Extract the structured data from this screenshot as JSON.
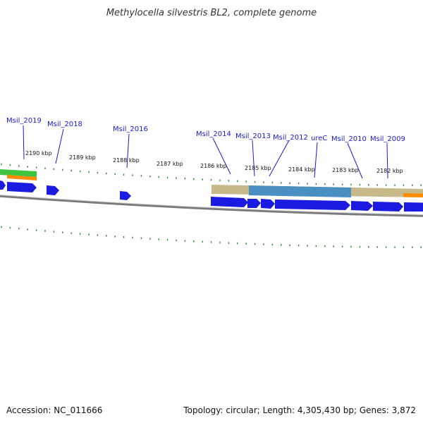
{
  "title": "Methylocella silvestris BL2, complete genome",
  "footer": {
    "accession": "Accession: NC_011666",
    "summary": "Topology: circular; Length: 4,305,430 bp; Genes: 3,872"
  },
  "scale_labels": [
    "2190 kbp",
    "2189 kbp",
    "2188 kbp",
    "2187 kbp",
    "2186 kbp",
    "2185 kbp",
    "2184 kbp",
    "2183 kbp",
    "2182 kbp"
  ],
  "gene_labels": [
    "Msil_2019",
    "Msil_2018",
    "Msil_2016",
    "Msil_2014",
    "Msil_2013",
    "Msil_2012",
    "ureC",
    "Msil_2010",
    "Msil_2009"
  ],
  "colors": {
    "gene_arrow": "#1a1ae0",
    "backbone": "#7a7a7a",
    "tick": "#2e8b2e",
    "cog_tan": "#c8b98a",
    "cog_steelblue": "#4a8fc2",
    "cog_green": "#3fc43f",
    "cog_orange": "#ff8c00",
    "label_blue": "#1a1ad6"
  }
}
